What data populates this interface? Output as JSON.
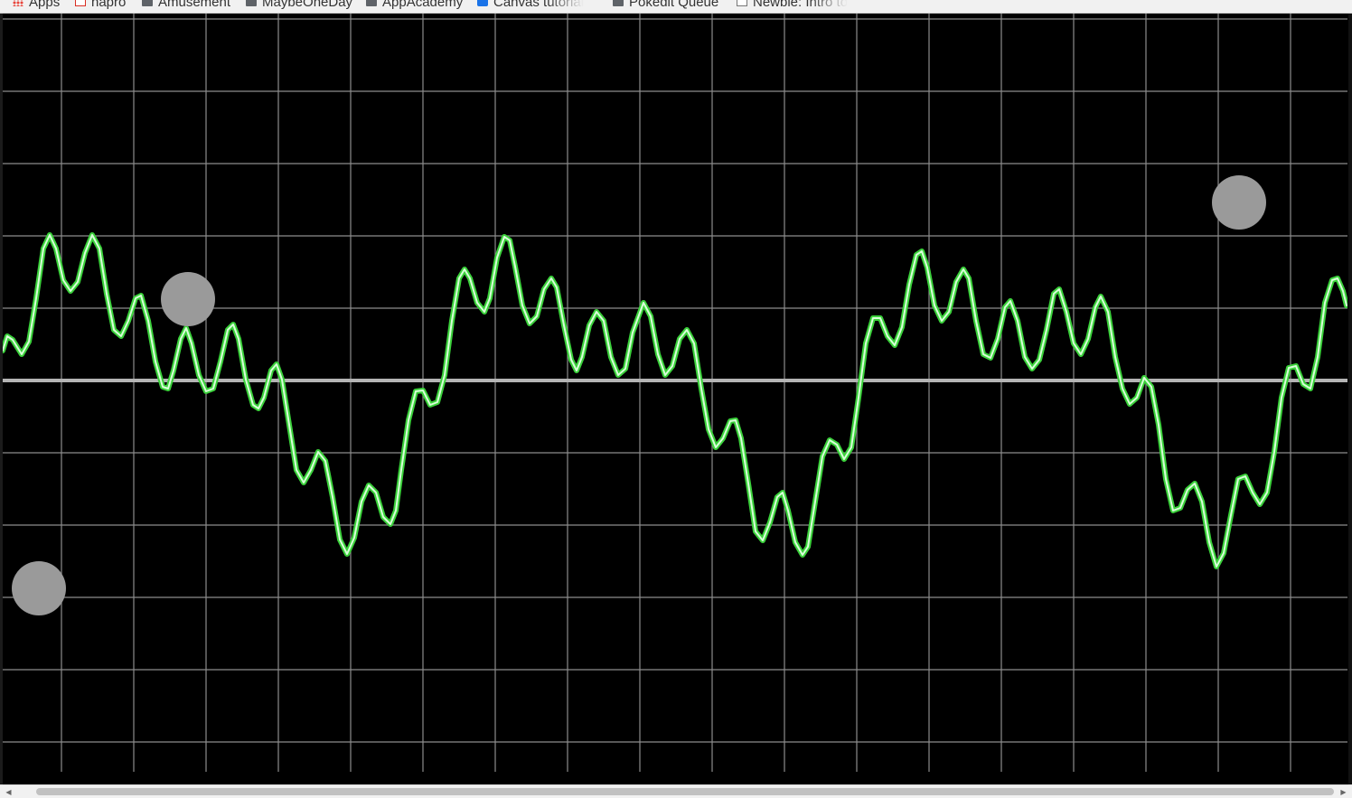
{
  "bookmarks": [
    {
      "label": "Apps",
      "icon": "apps-icon"
    },
    {
      "label": "hapro",
      "icon": "gmail-icon"
    },
    {
      "label": "Amusement",
      "icon": "folder-icon"
    },
    {
      "label": "MaybeOneDay",
      "icon": "folder-icon"
    },
    {
      "label": "AppAcademy",
      "icon": "folder-icon"
    },
    {
      "label": "Canvas tutorial",
      "icon": "canvas-icon"
    },
    {
      "label": "Pokedit Queue",
      "icon": "folder-icon"
    },
    {
      "label": "Newbie: Intro to",
      "icon": "page-icon"
    }
  ],
  "scope": {
    "background_color": "#000000",
    "grid_color": "#8c8c8c",
    "baseline_color": "#b4b4b4",
    "trace_color": "#3bd13b",
    "trace_glow_color": "#d9ffd9",
    "grid_columns": 19,
    "grid_rows": 11
  },
  "controls": {
    "handles": [
      {
        "name": "control-handle-left",
        "color": "#9a9a9a"
      },
      {
        "name": "control-handle-middle",
        "color": "#9a9a9a"
      },
      {
        "name": "control-handle-right",
        "color": "#9a9a9a"
      }
    ]
  },
  "scrollbar": {
    "left_arrow": "◀",
    "right_arrow": "▶"
  }
}
